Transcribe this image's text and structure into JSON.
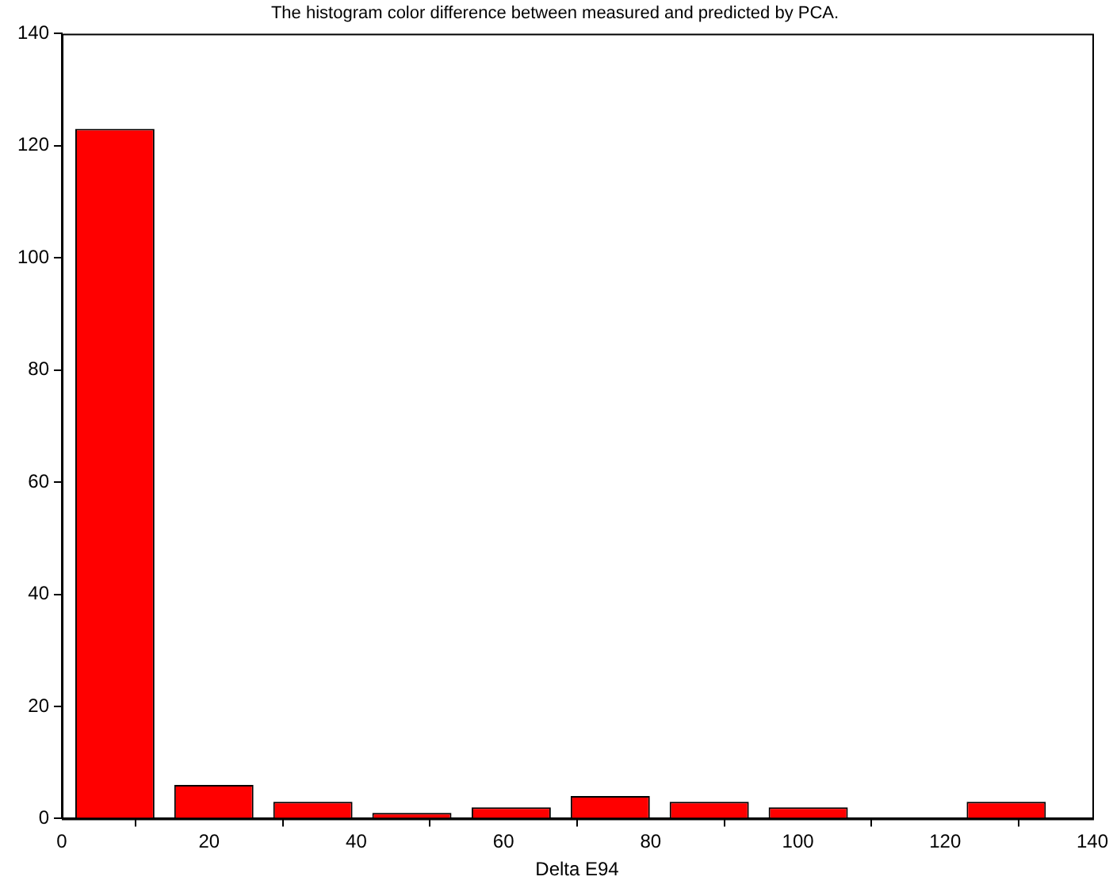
{
  "chart_data": {
    "type": "histogram",
    "title": "The histogram color difference between measured and predicted by PCA.",
    "xlabel": "Delta E94",
    "bins": [
      0.5,
      13.9,
      27.4,
      40.8,
      54.3,
      67.8,
      81.2,
      94.7,
      108.1,
      121.6,
      135
    ],
    "values": [
      123,
      6,
      3,
      1,
      2,
      4,
      3,
      2,
      0,
      3
    ],
    "color": "#ff0000",
    "xlim": [
      0,
      140
    ],
    "xticks": [
      0,
      20,
      40,
      60,
      80,
      100,
      120,
      140
    ],
    "ylim": [
      0,
      140
    ],
    "yticks": [
      0,
      20,
      40,
      60,
      80,
      100,
      120,
      140
    ],
    "grid": false
  }
}
